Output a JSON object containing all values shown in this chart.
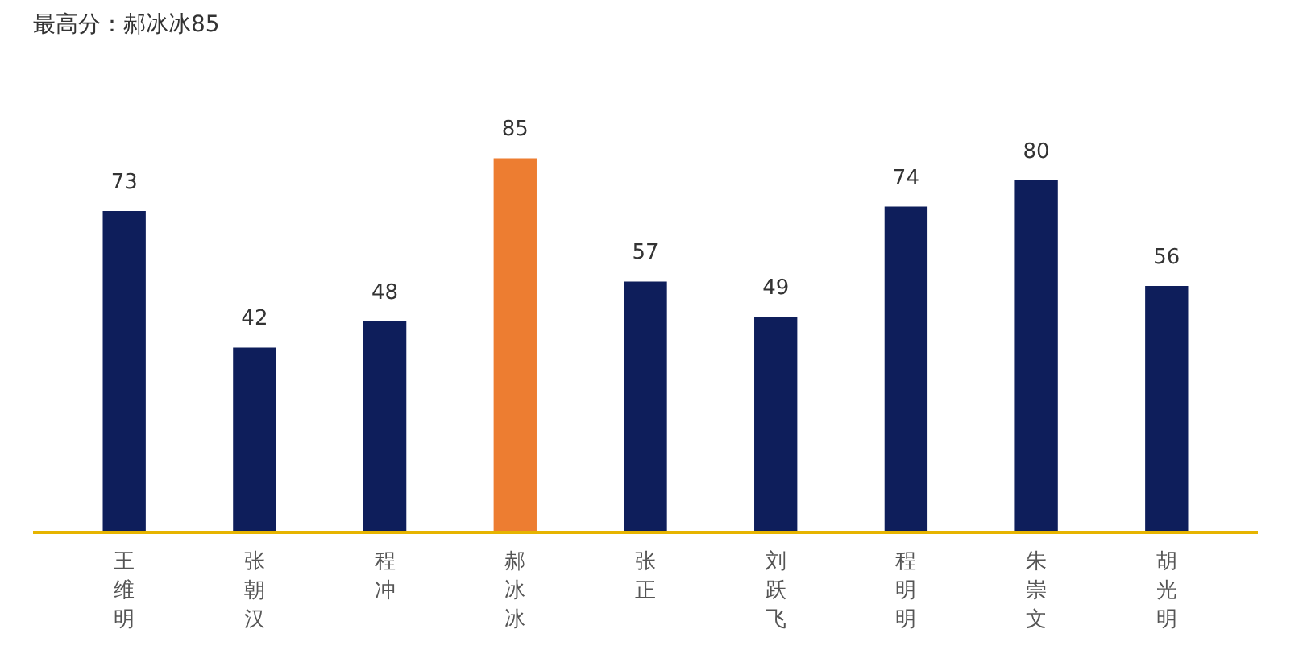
{
  "chart_data": {
    "type": "bar",
    "title": "最高分：郝冰冰85",
    "categories": [
      "王维明",
      "张朝汉",
      "程冲",
      "郝冰冰",
      "张正",
      "刘跃飞",
      "程明明",
      "朱崇文",
      "胡光明"
    ],
    "values": [
      73,
      42,
      48,
      85,
      57,
      49,
      74,
      80,
      56
    ],
    "colors": [
      "#0e1e5b",
      "#0e1e5b",
      "#0e1e5b",
      "#ed7d31",
      "#0e1e5b",
      "#0e1e5b",
      "#0e1e5b",
      "#0e1e5b",
      "#0e1e5b"
    ],
    "data_labels": true,
    "grid": false
  }
}
